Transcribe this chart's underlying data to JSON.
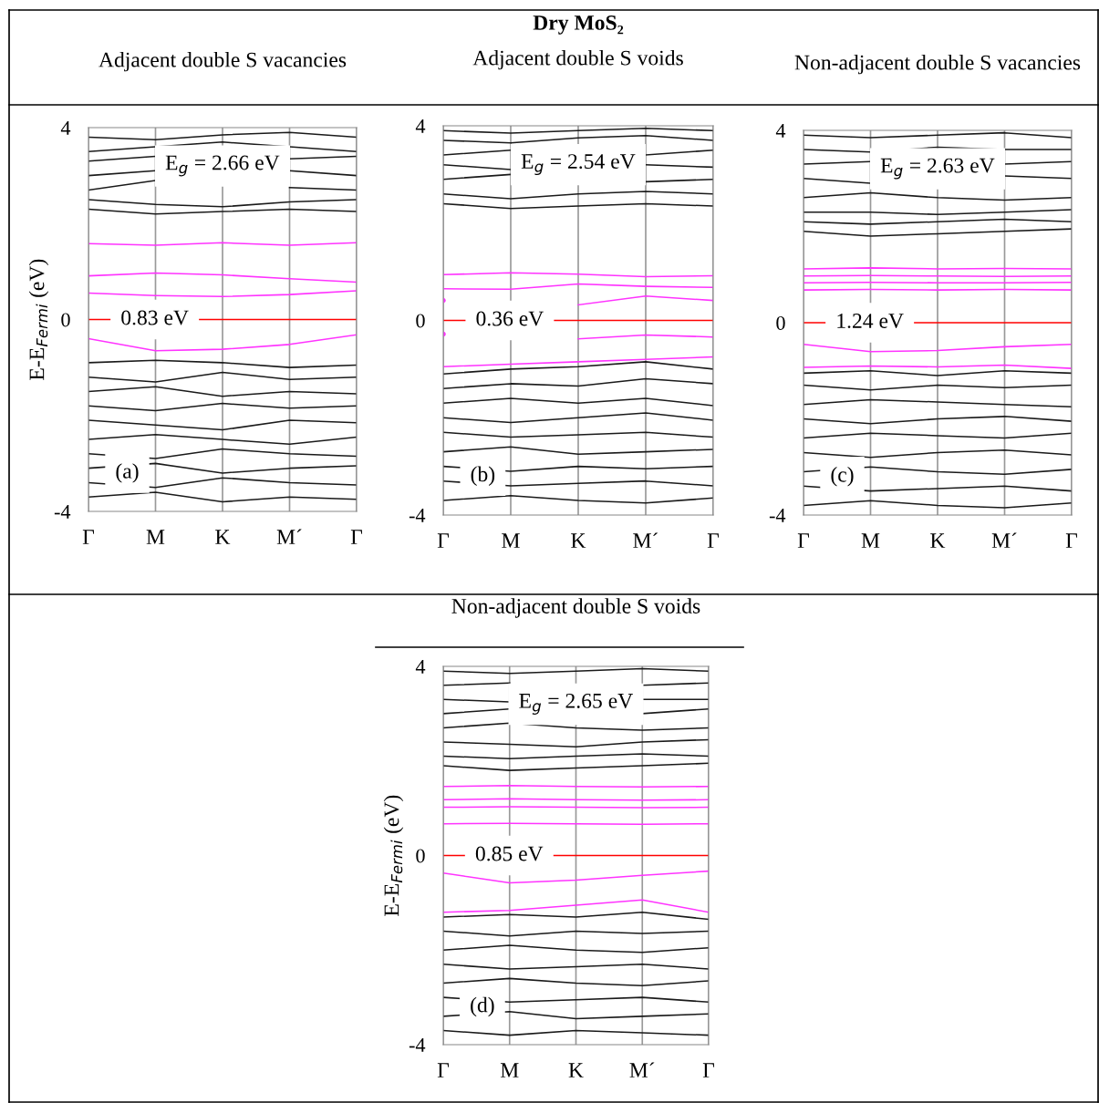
{
  "chart_data": [
    {
      "type": "line",
      "subtitle": "Adjacent double S vacancies",
      "ylabel": "E-E$_{Fermi}$ (eV)",
      "categories": [
        "Γ",
        "M",
        "K",
        "M´",
        "Γ"
      ],
      "ylim": [
        -4,
        4
      ],
      "yticks": [
        -4,
        0,
        4
      ],
      "grid": "x",
      "ref_lines": [
        {
          "axis": "y",
          "value": 0,
          "color": "#ff0000"
        }
      ],
      "annotations": [
        "E$_{g}$ = 2.66 eV",
        "0.83 eV",
        "(a)"
      ],
      "series": [
        {
          "color": "#ff33ff",
          "values": [
            1.58,
            1.55,
            1.6,
            1.55,
            1.6
          ]
        },
        {
          "color": "#ff33ff",
          "values": [
            0.91,
            0.97,
            0.93,
            0.85,
            0.78
          ]
        },
        {
          "color": "#ff33ff",
          "values": [
            0.55,
            0.5,
            0.48,
            0.52,
            0.6
          ]
        },
        {
          "color": "#ff33ff",
          "values": [
            -0.4,
            -0.65,
            -0.62,
            -0.52,
            -0.32
          ]
        },
        {
          "color": "#1a1a1a",
          "values": [
            2.3,
            2.2,
            2.25,
            2.3,
            2.25
          ]
        },
        {
          "color": "#1a1a1a",
          "values": [
            2.5,
            2.4,
            2.35,
            2.45,
            2.5
          ]
        },
        {
          "color": "#1a1a1a",
          "values": [
            2.7,
            2.9,
            null,
            2.75,
            2.7
          ]
        },
        {
          "color": "#1a1a1a",
          "values": [
            3.0,
            3.1,
            null,
            3.1,
            3.0
          ]
        },
        {
          "color": "#1a1a1a",
          "values": [
            3.3,
            3.4,
            null,
            3.35,
            3.4
          ]
        },
        {
          "color": "#1a1a1a",
          "values": [
            3.5,
            3.6,
            3.7,
            3.6,
            3.5
          ]
        },
        {
          "color": "#1a1a1a",
          "values": [
            3.8,
            3.75,
            3.85,
            3.9,
            3.8
          ]
        },
        {
          "color": "#1a1a1a",
          "values": [
            -0.9,
            -0.85,
            -0.9,
            -1.0,
            -0.95
          ]
        },
        {
          "color": "#1a1a1a",
          "values": [
            -1.2,
            -1.3,
            -1.1,
            -1.25,
            -1.2
          ]
        },
        {
          "color": "#1a1a1a",
          "values": [
            -1.5,
            -1.4,
            -1.6,
            -1.5,
            -1.55
          ]
        },
        {
          "color": "#1a1a1a",
          "values": [
            -1.8,
            -1.9,
            -1.75,
            -1.85,
            -1.8
          ]
        },
        {
          "color": "#1a1a1a",
          "values": [
            -2.1,
            -2.2,
            -2.3,
            -2.1,
            -2.15
          ]
        },
        {
          "color": "#1a1a1a",
          "values": [
            -2.5,
            -2.4,
            -2.5,
            -2.6,
            -2.45
          ]
        },
        {
          "color": "#1a1a1a",
          "values": [
            -2.8,
            -2.9,
            -2.7,
            -2.8,
            -2.85
          ]
        },
        {
          "color": "#1a1a1a",
          "values": [
            -3.1,
            -3.0,
            -3.2,
            -3.1,
            -3.05
          ]
        },
        {
          "color": "#1a1a1a",
          "values": [
            -3.4,
            -3.5,
            -3.3,
            -3.4,
            -3.45
          ]
        },
        {
          "color": "#1a1a1a",
          "values": [
            -3.7,
            -3.6,
            -3.8,
            -3.7,
            -3.75
          ]
        }
      ]
    },
    {
      "type": "line",
      "title": "Dry MoS₂",
      "subtitle": "Adjacent double S voids",
      "categories": [
        "Γ",
        "M",
        "K",
        "M´",
        "Γ"
      ],
      "ylim": [
        -4,
        4
      ],
      "yticks": [
        -4,
        0,
        4
      ],
      "grid": "x",
      "ref_lines": [
        {
          "axis": "y",
          "value": 0,
          "color": "#ff0000"
        }
      ],
      "annotations": [
        "E$_{g}$ = 2.54 eV",
        "0.36 eV",
        "(b)"
      ],
      "series": [
        {
          "color": "#ff33ff",
          "values": [
            0.94,
            0.98,
            0.95,
            0.9,
            0.92
          ]
        },
        {
          "color": "#ff33ff",
          "values": [
            0.65,
            0.64,
            0.75,
            0.7,
            0.68
          ]
        },
        {
          "color": "#ff33ff",
          "values": [
            0.41,
            null,
            0.32,
            0.5,
            0.41
          ]
        },
        {
          "color": "#ff33ff",
          "values": [
            -0.28,
            null,
            -0.38,
            -0.3,
            -0.34
          ]
        },
        {
          "color": "#ff33ff",
          "values": [
            -0.95,
            -0.9,
            -0.85,
            -0.8,
            -0.75
          ]
        },
        {
          "color": "#1a1a1a",
          "values": [
            2.4,
            2.3,
            2.35,
            2.4,
            2.35
          ]
        },
        {
          "color": "#1a1a1a",
          "values": [
            2.6,
            2.5,
            2.6,
            2.65,
            2.6
          ]
        },
        {
          "color": "#1a1a1a",
          "values": [
            2.9,
            3.0,
            null,
            2.85,
            2.9
          ]
        },
        {
          "color": "#1a1a1a",
          "values": [
            3.2,
            3.1,
            null,
            3.2,
            3.15
          ]
        },
        {
          "color": "#1a1a1a",
          "values": [
            3.4,
            3.5,
            null,
            3.4,
            3.5
          ]
        },
        {
          "color": "#1a1a1a",
          "values": [
            3.7,
            3.65,
            3.75,
            3.8,
            3.7
          ]
        },
        {
          "color": "#1a1a1a",
          "values": [
            3.9,
            3.85,
            3.9,
            3.95,
            3.9
          ]
        },
        {
          "color": "#1a1a1a",
          "values": [
            -1.1,
            -1.0,
            -0.95,
            -0.85,
            -1.0
          ]
        },
        {
          "color": "#1a1a1a",
          "values": [
            -1.4,
            -1.3,
            -1.35,
            -1.2,
            -1.3
          ]
        },
        {
          "color": "#1a1a1a",
          "values": [
            -1.7,
            -1.6,
            -1.7,
            -1.6,
            -1.75
          ]
        },
        {
          "color": "#1a1a1a",
          "values": [
            -2.0,
            -2.1,
            -2.0,
            -1.9,
            -2.05
          ]
        },
        {
          "color": "#1a1a1a",
          "values": [
            -2.3,
            -2.4,
            -2.35,
            -2.3,
            -2.4
          ]
        },
        {
          "color": "#1a1a1a",
          "values": [
            -2.7,
            -2.6,
            -2.75,
            -2.7,
            -2.65
          ]
        },
        {
          "color": "#1a1a1a",
          "values": [
            -3.0,
            -3.1,
            -3.0,
            -3.05,
            -3.0
          ]
        },
        {
          "color": "#1a1a1a",
          "values": [
            -3.3,
            -3.4,
            -3.35,
            -3.3,
            -3.4
          ]
        },
        {
          "color": "#1a1a1a",
          "values": [
            -3.7,
            -3.6,
            -3.7,
            -3.75,
            -3.65
          ]
        }
      ]
    },
    {
      "type": "line",
      "subtitle": "Non-adjacent double S vacancies",
      "categories": [
        "Γ",
        "M",
        "K",
        "M´",
        "Γ"
      ],
      "ylim": [
        -4,
        4
      ],
      "yticks": [
        -4,
        0,
        4
      ],
      "grid": "x",
      "ref_lines": [
        {
          "axis": "y",
          "value": 0,
          "color": "#ff0000"
        }
      ],
      "annotations": [
        "E$_{g}$ = 2.63 eV",
        "1.24 eV",
        "(c)"
      ],
      "series": [
        {
          "color": "#ff33ff",
          "values": [
            1.12,
            1.14,
            1.12,
            1.13,
            1.12
          ]
        },
        {
          "color": "#ff33ff",
          "values": [
            0.97,
            0.98,
            0.97,
            0.96,
            0.97
          ]
        },
        {
          "color": "#ff33ff",
          "values": [
            0.83,
            0.84,
            0.83,
            0.83,
            0.84
          ]
        },
        {
          "color": "#ff33ff",
          "values": [
            0.68,
            0.69,
            0.68,
            0.69,
            0.68
          ]
        },
        {
          "color": "#ff33ff",
          "values": [
            -0.45,
            -0.6,
            -0.58,
            -0.5,
            -0.45
          ]
        },
        {
          "color": "#ff33ff",
          "values": [
            -0.93,
            -0.9,
            -0.92,
            -0.88,
            -0.95
          ]
        },
        {
          "color": "#1a1a1a",
          "values": [
            1.9,
            1.8,
            1.85,
            1.9,
            1.95
          ]
        },
        {
          "color": "#1a1a1a",
          "values": [
            2.1,
            2.05,
            2.1,
            2.15,
            2.1
          ]
        },
        {
          "color": "#1a1a1a",
          "values": [
            2.3,
            2.3,
            2.25,
            2.3,
            2.35
          ]
        },
        {
          "color": "#1a1a1a",
          "values": [
            2.6,
            2.7,
            2.6,
            2.55,
            2.6
          ]
        },
        {
          "color": "#1a1a1a",
          "values": [
            3.0,
            2.9,
            null,
            3.05,
            3.0
          ]
        },
        {
          "color": "#1a1a1a",
          "values": [
            3.3,
            3.35,
            null,
            3.3,
            3.35
          ]
        },
        {
          "color": "#1a1a1a",
          "values": [
            3.6,
            3.55,
            3.65,
            3.6,
            3.6
          ]
        },
        {
          "color": "#1a1a1a",
          "values": [
            3.9,
            3.85,
            3.9,
            3.95,
            3.85
          ]
        },
        {
          "color": "#1a1a1a",
          "values": [
            -1.05,
            -1.0,
            -1.1,
            -1.0,
            -1.05
          ]
        },
        {
          "color": "#1a1a1a",
          "values": [
            -1.3,
            -1.4,
            -1.3,
            -1.35,
            -1.3
          ]
        },
        {
          "color": "#1a1a1a",
          "values": [
            -1.7,
            -1.6,
            -1.65,
            -1.7,
            -1.75
          ]
        },
        {
          "color": "#1a1a1a",
          "values": [
            -2.0,
            -2.1,
            -2.0,
            -1.95,
            -2.05
          ]
        },
        {
          "color": "#1a1a1a",
          "values": [
            -2.4,
            -2.3,
            -2.35,
            -2.4,
            -2.3
          ]
        },
        {
          "color": "#1a1a1a",
          "values": [
            -2.7,
            -2.8,
            -2.7,
            -2.65,
            -2.75
          ]
        },
        {
          "color": "#1a1a1a",
          "values": [
            -3.1,
            -3.0,
            -3.1,
            -3.15,
            -3.05
          ]
        },
        {
          "color": "#1a1a1a",
          "values": [
            -3.4,
            -3.5,
            -3.45,
            -3.4,
            -3.5
          ]
        },
        {
          "color": "#1a1a1a",
          "values": [
            -3.8,
            -3.7,
            -3.8,
            -3.85,
            -3.75
          ]
        }
      ]
    },
    {
      "type": "line",
      "subtitle": "Non-adjacent double S voids",
      "ylabel": "E-E$_{Fermi}$ (eV)",
      "categories": [
        "Γ",
        "M",
        "K",
        "M´",
        "Γ"
      ],
      "ylim": [
        -4,
        4
      ],
      "yticks": [
        -4,
        0,
        4
      ],
      "grid": "x",
      "ref_lines": [
        {
          "axis": "y",
          "value": 0,
          "color": "#ff0000"
        }
      ],
      "annotations": [
        "E$_{g}$ = 2.65 eV",
        "0.85 eV",
        "(d)"
      ],
      "series": [
        {
          "color": "#ff33ff",
          "values": [
            1.46,
            1.48,
            1.46,
            1.45,
            1.46
          ]
        },
        {
          "color": "#ff33ff",
          "values": [
            1.18,
            1.2,
            1.18,
            1.17,
            1.18
          ]
        },
        {
          "color": "#ff33ff",
          "values": [
            1.02,
            1.03,
            1.02,
            1.01,
            1.02
          ]
        },
        {
          "color": "#ff33ff",
          "values": [
            0.67,
            0.68,
            0.67,
            0.66,
            0.67
          ]
        },
        {
          "color": "#ff33ff",
          "values": [
            -0.37,
            -0.58,
            -0.52,
            -0.42,
            -0.33
          ]
        },
        {
          "color": "#ff33ff",
          "values": [
            -1.2,
            -1.16,
            -1.05,
            -0.94,
            -1.2
          ]
        },
        {
          "color": "#1a1a1a",
          "values": [
            1.9,
            1.8,
            1.85,
            1.9,
            1.95
          ]
        },
        {
          "color": "#1a1a1a",
          "values": [
            2.1,
            2.05,
            2.1,
            2.15,
            2.1
          ]
        },
        {
          "color": "#1a1a1a",
          "values": [
            2.4,
            2.35,
            2.3,
            2.4,
            2.45
          ]
        },
        {
          "color": "#1a1a1a",
          "values": [
            2.7,
            2.8,
            2.7,
            2.65,
            2.7
          ]
        },
        {
          "color": "#1a1a1a",
          "values": [
            3.0,
            3.1,
            null,
            3.0,
            3.1
          ]
        },
        {
          "color": "#1a1a1a",
          "values": [
            3.3,
            3.25,
            null,
            3.3,
            3.3
          ]
        },
        {
          "color": "#1a1a1a",
          "values": [
            3.6,
            3.65,
            null,
            3.6,
            3.65
          ]
        },
        {
          "color": "#1a1a1a",
          "values": [
            3.9,
            3.85,
            3.9,
            3.95,
            3.9
          ]
        },
        {
          "color": "#1a1a1a",
          "values": [
            -1.3,
            -1.25,
            -1.3,
            -1.2,
            -1.35
          ]
        },
        {
          "color": "#1a1a1a",
          "values": [
            -1.6,
            -1.7,
            -1.6,
            -1.65,
            -1.6
          ]
        },
        {
          "color": "#1a1a1a",
          "values": [
            -2.0,
            -1.9,
            -2.0,
            -2.05,
            -1.95
          ]
        },
        {
          "color": "#1a1a1a",
          "values": [
            -2.3,
            -2.4,
            -2.35,
            -2.3,
            -2.4
          ]
        },
        {
          "color": "#1a1a1a",
          "values": [
            -2.7,
            -2.6,
            -2.7,
            -2.75,
            -2.65
          ]
        },
        {
          "color": "#1a1a1a",
          "values": [
            -3.0,
            -3.1,
            -3.05,
            -3.0,
            -3.1
          ]
        },
        {
          "color": "#1a1a1a",
          "values": [
            -3.4,
            -3.3,
            -3.45,
            -3.4,
            -3.35
          ]
        },
        {
          "color": "#1a1a1a",
          "values": [
            -3.7,
            -3.8,
            -3.7,
            -3.75,
            -3.8
          ]
        }
      ]
    }
  ]
}
